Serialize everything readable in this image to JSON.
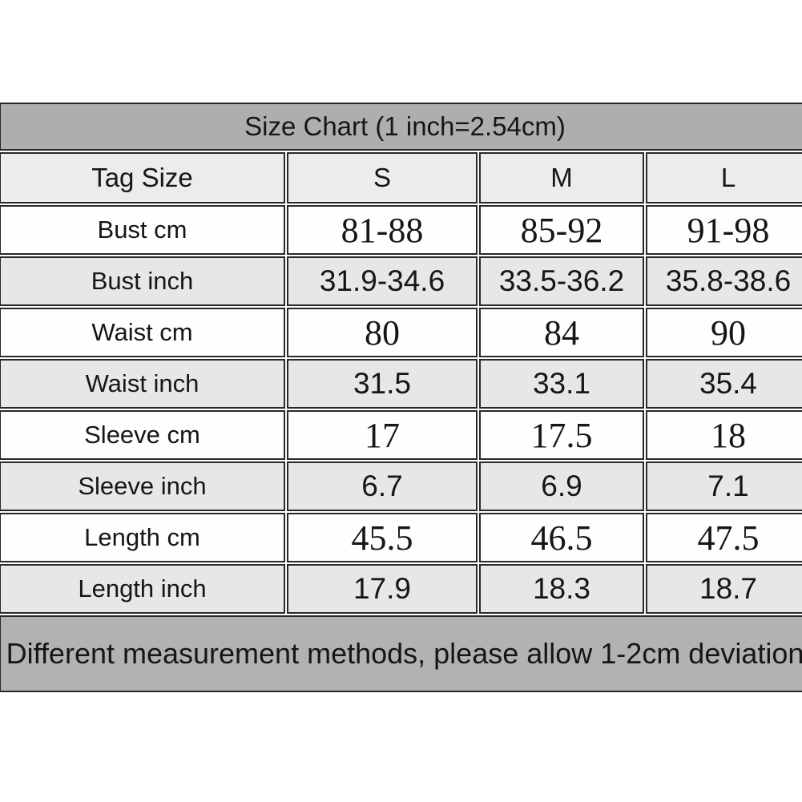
{
  "table": {
    "title": "Size Chart (1 inch=2.54cm)",
    "columns": [
      "Tag Size",
      "S",
      "M",
      "L"
    ],
    "rows": [
      {
        "label": "Bust cm",
        "unit": "cm",
        "values": [
          "81-88",
          "85-92",
          "91-98"
        ]
      },
      {
        "label": "Bust inch",
        "unit": "inch",
        "values": [
          "31.9-34.6",
          "33.5-36.2",
          "35.8-38.6"
        ]
      },
      {
        "label": "Waist cm",
        "unit": "cm",
        "values": [
          "80",
          "84",
          "90"
        ]
      },
      {
        "label": "Waist inch",
        "unit": "inch",
        "values": [
          "31.5",
          "33.1",
          "35.4"
        ]
      },
      {
        "label": "Sleeve cm",
        "unit": "cm",
        "values": [
          "17",
          "17.5",
          "18"
        ]
      },
      {
        "label": "Sleeve inch",
        "unit": "inch",
        "values": [
          "6.7",
          "6.9",
          "7.1"
        ]
      },
      {
        "label": "Length cm",
        "unit": "cm",
        "values": [
          "45.5",
          "46.5",
          "47.5"
        ]
      },
      {
        "label": "Length inch",
        "unit": "inch",
        "values": [
          "17.9",
          "18.3",
          "18.7"
        ]
      }
    ],
    "footer_note": "Different measurement methods, please allow 1-2cm deviation"
  },
  "colors": {
    "title_bg": "#b0adad",
    "header_bg": "#edebeb",
    "row_white_bg": "#fefefe",
    "row_gray_bg": "#e9e6e6",
    "footer_bg": "#b4b1b1",
    "border": "#2a2828",
    "text": "#161616"
  },
  "chart_data": {
    "type": "table",
    "title": "Size Chart (1 inch=2.54cm)",
    "columns": [
      "Tag Size",
      "S",
      "M",
      "L"
    ],
    "rows": [
      [
        "Bust cm",
        "81-88",
        "85-92",
        "91-98"
      ],
      [
        "Bust inch",
        "31.9-34.6",
        "33.5-36.2",
        "35.8-38.6"
      ],
      [
        "Waist cm",
        "80",
        "84",
        "90"
      ],
      [
        "Waist inch",
        "31.5",
        "33.1",
        "35.4"
      ],
      [
        "Sleeve cm",
        "17",
        "17.5",
        "18"
      ],
      [
        "Sleeve inch",
        "6.7",
        "6.9",
        "7.1"
      ],
      [
        "Length cm",
        "45.5",
        "46.5",
        "47.5"
      ],
      [
        "Length inch",
        "17.9",
        "18.3",
        "18.7"
      ]
    ],
    "footnote": "Different measurement methods, please allow 1-2cm deviation"
  }
}
